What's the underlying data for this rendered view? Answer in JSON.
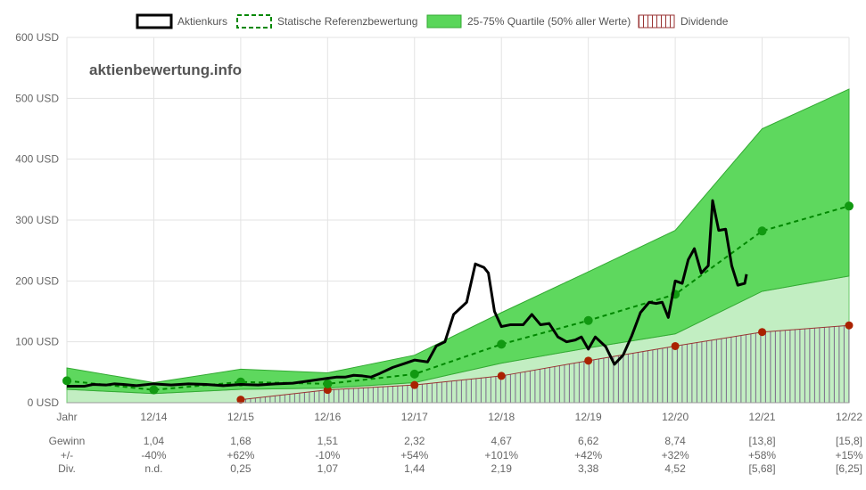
{
  "chart_data": {
    "type": "line",
    "watermark": "aktienbewertung.info",
    "legend": {
      "placement": "top",
      "entries": [
        {
          "name": "Aktienkurs",
          "color": "#000000"
        },
        {
          "name": "Statische Referenzbewertung",
          "color": "#008800"
        },
        {
          "name": "25-75% Quartile (50% aller Werte)",
          "color": "#44cc44"
        },
        {
          "name": "Dividende",
          "color": "#993333"
        }
      ]
    },
    "y_ticks": [
      "0 USD",
      "100 USD",
      "200 USD",
      "300 USD",
      "400 USD",
      "500 USD",
      "600 USD"
    ],
    "ylim": [
      0,
      600
    ],
    "xlim": [
      2013,
      2022
    ],
    "x_ticks": [
      "Jahr",
      "12/14",
      "12/15",
      "12/16",
      "12/17",
      "12/18",
      "12/19",
      "12/20",
      "12/21",
      "12/22"
    ],
    "table": {
      "rows": [
        {
          "label": "Gewinn",
          "values": [
            "1,04",
            "1,68",
            "1,51",
            "2,32",
            "4,67",
            "6,62",
            "8,74",
            "[13,8]",
            "[15,8]"
          ]
        },
        {
          "label": "+/-",
          "values": [
            "-40%",
            "+62%",
            "-10%",
            "+54%",
            "+101%",
            "+42%",
            "+32%",
            "+58%",
            "+15%"
          ]
        },
        {
          "label": "Div.",
          "values": [
            "n.d.",
            "0,25",
            "1,07",
            "1,44",
            "2,19",
            "3,38",
            "4,52",
            "[5,68]",
            "[6,25]"
          ]
        }
      ]
    },
    "series": [
      {
        "name": "25-75% Quartile (50% aller Werte)",
        "upper": [
          [
            2013,
            57
          ],
          [
            2014,
            33
          ],
          [
            2015,
            55
          ],
          [
            2016,
            49
          ],
          [
            2017,
            78
          ],
          [
            2018,
            148
          ],
          [
            2019,
            215
          ],
          [
            2020,
            283
          ],
          [
            2021,
            450
          ],
          [
            2022,
            515
          ]
        ],
        "lower": [
          [
            2013,
            22
          ],
          [
            2014,
            15
          ],
          [
            2015,
            22
          ],
          [
            2016,
            24
          ],
          [
            2017,
            33
          ],
          [
            2018,
            65
          ],
          [
            2019,
            90
          ],
          [
            2020,
            113
          ],
          [
            2021,
            183
          ],
          [
            2022,
            208
          ]
        ]
      },
      {
        "name": "Statische Referenzbewertung",
        "points": [
          [
            2013,
            36
          ],
          [
            2014,
            21
          ],
          [
            2015,
            34
          ],
          [
            2016,
            31
          ],
          [
            2017,
            47
          ],
          [
            2018,
            96
          ],
          [
            2019,
            135
          ],
          [
            2020,
            178
          ],
          [
            2021,
            282
          ],
          [
            2022,
            323
          ]
        ]
      },
      {
        "name": "Dividende",
        "points": [
          [
            2015,
            5
          ],
          [
            2016,
            21
          ],
          [
            2017,
            29
          ],
          [
            2018,
            44
          ],
          [
            2019,
            69
          ],
          [
            2020,
            93
          ],
          [
            2021,
            116
          ],
          [
            2022,
            127
          ]
        ]
      },
      {
        "name": "Aktienkurs",
        "points": [
          [
            2013.0,
            27
          ],
          [
            2013.2,
            27
          ],
          [
            2013.3,
            30
          ],
          [
            2013.45,
            29
          ],
          [
            2013.55,
            31
          ],
          [
            2013.65,
            30
          ],
          [
            2013.8,
            28
          ],
          [
            2014.0,
            31
          ],
          [
            2014.2,
            29
          ],
          [
            2014.4,
            31
          ],
          [
            2014.6,
            30
          ],
          [
            2014.8,
            28
          ],
          [
            2015.0,
            30
          ],
          [
            2015.2,
            29
          ],
          [
            2015.4,
            31
          ],
          [
            2015.6,
            32
          ],
          [
            2015.8,
            36
          ],
          [
            2015.9,
            38
          ],
          [
            2016.0,
            40
          ],
          [
            2016.1,
            42
          ],
          [
            2016.2,
            42
          ],
          [
            2016.3,
            45
          ],
          [
            2016.4,
            44
          ],
          [
            2016.5,
            42
          ],
          [
            2016.6,
            48
          ],
          [
            2016.75,
            58
          ],
          [
            2016.9,
            65
          ],
          [
            2017.0,
            70
          ],
          [
            2017.15,
            67
          ],
          [
            2017.25,
            93
          ],
          [
            2017.35,
            100
          ],
          [
            2017.45,
            145
          ],
          [
            2017.6,
            165
          ],
          [
            2017.7,
            228
          ],
          [
            2017.8,
            222
          ],
          [
            2017.85,
            213
          ],
          [
            2017.92,
            150
          ],
          [
            2018.0,
            125
          ],
          [
            2018.1,
            128
          ],
          [
            2018.25,
            128
          ],
          [
            2018.35,
            145
          ],
          [
            2018.45,
            128
          ],
          [
            2018.55,
            130
          ],
          [
            2018.65,
            108
          ],
          [
            2018.75,
            100
          ],
          [
            2018.85,
            103
          ],
          [
            2018.92,
            108
          ],
          [
            2019.0,
            88
          ],
          [
            2019.08,
            108
          ],
          [
            2019.2,
            92
          ],
          [
            2019.3,
            63
          ],
          [
            2019.4,
            78
          ],
          [
            2019.5,
            110
          ],
          [
            2019.6,
            148
          ],
          [
            2019.7,
            165
          ],
          [
            2019.78,
            163
          ],
          [
            2019.85,
            165
          ],
          [
            2019.92,
            140
          ],
          [
            2020.0,
            200
          ],
          [
            2020.08,
            196
          ],
          [
            2020.15,
            235
          ],
          [
            2020.22,
            253
          ],
          [
            2020.3,
            213
          ],
          [
            2020.38,
            225
          ],
          [
            2020.43,
            332
          ],
          [
            2020.5,
            283
          ],
          [
            2020.58,
            285
          ],
          [
            2020.65,
            225
          ],
          [
            2020.72,
            193
          ],
          [
            2020.8,
            196
          ],
          [
            2020.82,
            211
          ]
        ]
      }
    ]
  }
}
